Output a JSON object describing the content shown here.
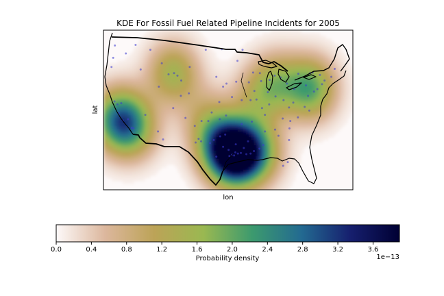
{
  "chart_data": {
    "type": "heatmap",
    "title": "KDE For Fossil Fuel Related Pipeline Incidents for 2005",
    "xlabel": "lon",
    "ylabel": "lat",
    "xlim": [
      -125,
      -66
    ],
    "ylim": [
      24,
      50
    ],
    "colorbar": {
      "label": "Probability density",
      "range": [
        0.0,
        3.9
      ],
      "ticks": [
        0.0,
        0.4,
        0.8,
        1.2,
        1.6,
        2.0,
        2.4,
        2.8,
        3.2,
        3.6
      ],
      "tick_labels": [
        "0.0",
        "0.4",
        "0.8",
        "1.2",
        "1.6",
        "2.0",
        "2.4",
        "2.8",
        "3.2",
        "3.6"
      ],
      "offset_text": "1e−13",
      "colors": [
        "#fdf9f9",
        "#dcb79d",
        "#bca357",
        "#9ab851",
        "#3c9a6e",
        "#236a91",
        "#161f6e",
        "#000033"
      ]
    },
    "density_peaks": [
      {
        "lon": -94.0,
        "lat": 29.8,
        "value": 3.9
      },
      {
        "lon": -89.0,
        "lat": 30.2,
        "value": 1.8
      },
      {
        "lon": -97.5,
        "lat": 31.5,
        "value": 1.6
      },
      {
        "lon": -121.5,
        "lat": 35.5,
        "value": 2.2
      },
      {
        "lon": -118.0,
        "lat": 34.0,
        "value": 1.4
      },
      {
        "lon": -108.5,
        "lat": 43.0,
        "value": 1.5
      },
      {
        "lon": -76.0,
        "lat": 40.5,
        "value": 2.0
      },
      {
        "lon": -84.0,
        "lat": 41.5,
        "value": 1.2
      },
      {
        "lon": -88.5,
        "lat": 39.0,
        "value": 0.9
      },
      {
        "lon": -101.0,
        "lat": 36.0,
        "value": 0.7
      }
    ],
    "incidents": [
      [
        -94.6,
        29.7
      ],
      [
        -93.8,
        30.1
      ],
      [
        -93.2,
        29.9
      ],
      [
        -94.1,
        29.6
      ],
      [
        -95.2,
        29.5
      ],
      [
        -92.5,
        30.0
      ],
      [
        -91.2,
        29.8
      ],
      [
        -90.2,
        29.9
      ],
      [
        -89.4,
        30.3
      ],
      [
        -96.7,
        31.0
      ],
      [
        -97.4,
        32.7
      ],
      [
        -95.4,
        30.5
      ],
      [
        -98.3,
        29.4
      ],
      [
        -96.2,
        33.0
      ],
      [
        -93.7,
        31.4
      ],
      [
        -91.8,
        30.8
      ],
      [
        -90.8,
        31.9
      ],
      [
        -88.1,
        30.7
      ],
      [
        -87.2,
        31.3
      ],
      [
        -98.9,
        32.1
      ],
      [
        -99.8,
        31.6
      ],
      [
        -101.9,
        31.9
      ],
      [
        -102.5,
        32.3
      ],
      [
        -103.2,
        31.7
      ],
      [
        -121.7,
        37.9
      ],
      [
        -121.3,
        36.5
      ],
      [
        -120.4,
        35.3
      ],
      [
        -119.2,
        35.5
      ],
      [
        -118.3,
        34.1
      ],
      [
        -117.9,
        34.0
      ],
      [
        -122.4,
        38.4
      ],
      [
        -120.8,
        38.1
      ],
      [
        -108.3,
        43.0
      ],
      [
        -107.5,
        42.6
      ],
      [
        -109.6,
        42.8
      ],
      [
        -106.6,
        41.8
      ],
      [
        -111.2,
        44.6
      ],
      [
        -104.6,
        44.0
      ],
      [
        -75.2,
        40.0
      ],
      [
        -74.4,
        40.4
      ],
      [
        -76.6,
        39.3
      ],
      [
        -77.1,
        41.0
      ],
      [
        -73.3,
        41.2
      ],
      [
        -79.9,
        40.4
      ],
      [
        -81.6,
        41.3
      ],
      [
        -83.1,
        42.3
      ],
      [
        -84.5,
        42.6
      ],
      [
        -85.7,
        41.9
      ],
      [
        -87.7,
        41.7
      ],
      [
        -86.1,
        39.9
      ],
      [
        -88.8,
        38.7
      ],
      [
        -90.2,
        38.6
      ],
      [
        -89.3,
        40.1
      ],
      [
        -84.3,
        39.2
      ],
      [
        -82.4,
        38.6
      ],
      [
        -81.1,
        37.4
      ],
      [
        -80.1,
        38.2
      ],
      [
        -85.8,
        37.9
      ],
      [
        -87.5,
        37.3
      ],
      [
        -92.3,
        38.6
      ],
      [
        -94.6,
        39.1
      ],
      [
        -95.9,
        41.3
      ],
      [
        -97.6,
        38.3
      ],
      [
        -99.4,
        36.6
      ],
      [
        -97.5,
        35.5
      ],
      [
        -96.0,
        36.1
      ],
      [
        -100.2,
        35.2
      ],
      [
        -101.8,
        35.2
      ],
      [
        -103.4,
        34.4
      ],
      [
        -105.6,
        35.7
      ],
      [
        -104.8,
        39.7
      ],
      [
        -106.7,
        39.3
      ],
      [
        -108.5,
        37.3
      ],
      [
        -111.9,
        40.8
      ],
      [
        -112.1,
        33.5
      ],
      [
        -110.9,
        32.2
      ],
      [
        -115.1,
        36.2
      ],
      [
        -116.2,
        43.6
      ],
      [
        -119.7,
        46.2
      ],
      [
        -122.3,
        47.5
      ],
      [
        -122.7,
        45.5
      ],
      [
        -123.1,
        44.0
      ],
      [
        -117.4,
        47.6
      ],
      [
        -113.9,
        46.8
      ],
      [
        -100.8,
        46.8
      ],
      [
        -97.0,
        46.9
      ],
      [
        -93.3,
        45.0
      ],
      [
        -92.1,
        46.8
      ],
      [
        -89.6,
        43.1
      ],
      [
        -88.0,
        43.0
      ],
      [
        -90.6,
        41.5
      ],
      [
        -93.6,
        41.6
      ],
      [
        -96.7,
        40.8
      ],
      [
        -98.3,
        42.4
      ],
      [
        -86.8,
        36.2
      ],
      [
        -84.4,
        33.8
      ],
      [
        -82.6,
        35.6
      ],
      [
        -80.8,
        35.2
      ],
      [
        -81.0,
        34.0
      ],
      [
        -79.0,
        35.8
      ],
      [
        -77.4,
        37.5
      ],
      [
        -76.3,
        36.9
      ],
      [
        -86.8,
        33.5
      ],
      [
        -89.9,
        35.1
      ],
      [
        -92.3,
        34.7
      ],
      [
        -83.6,
        32.8
      ],
      [
        -81.1,
        32.1
      ],
      [
        -82.5,
        27.9
      ],
      [
        -81.4,
        28.5
      ],
      [
        -71.1,
        42.4
      ],
      [
        -72.7,
        41.8
      ],
      [
        -70.3,
        43.7
      ],
      [
        -73.8,
        42.7
      ],
      [
        -76.1,
        43.0
      ],
      [
        -78.9,
        42.9
      ],
      [
        -75.5,
        43.1
      ]
    ]
  }
}
